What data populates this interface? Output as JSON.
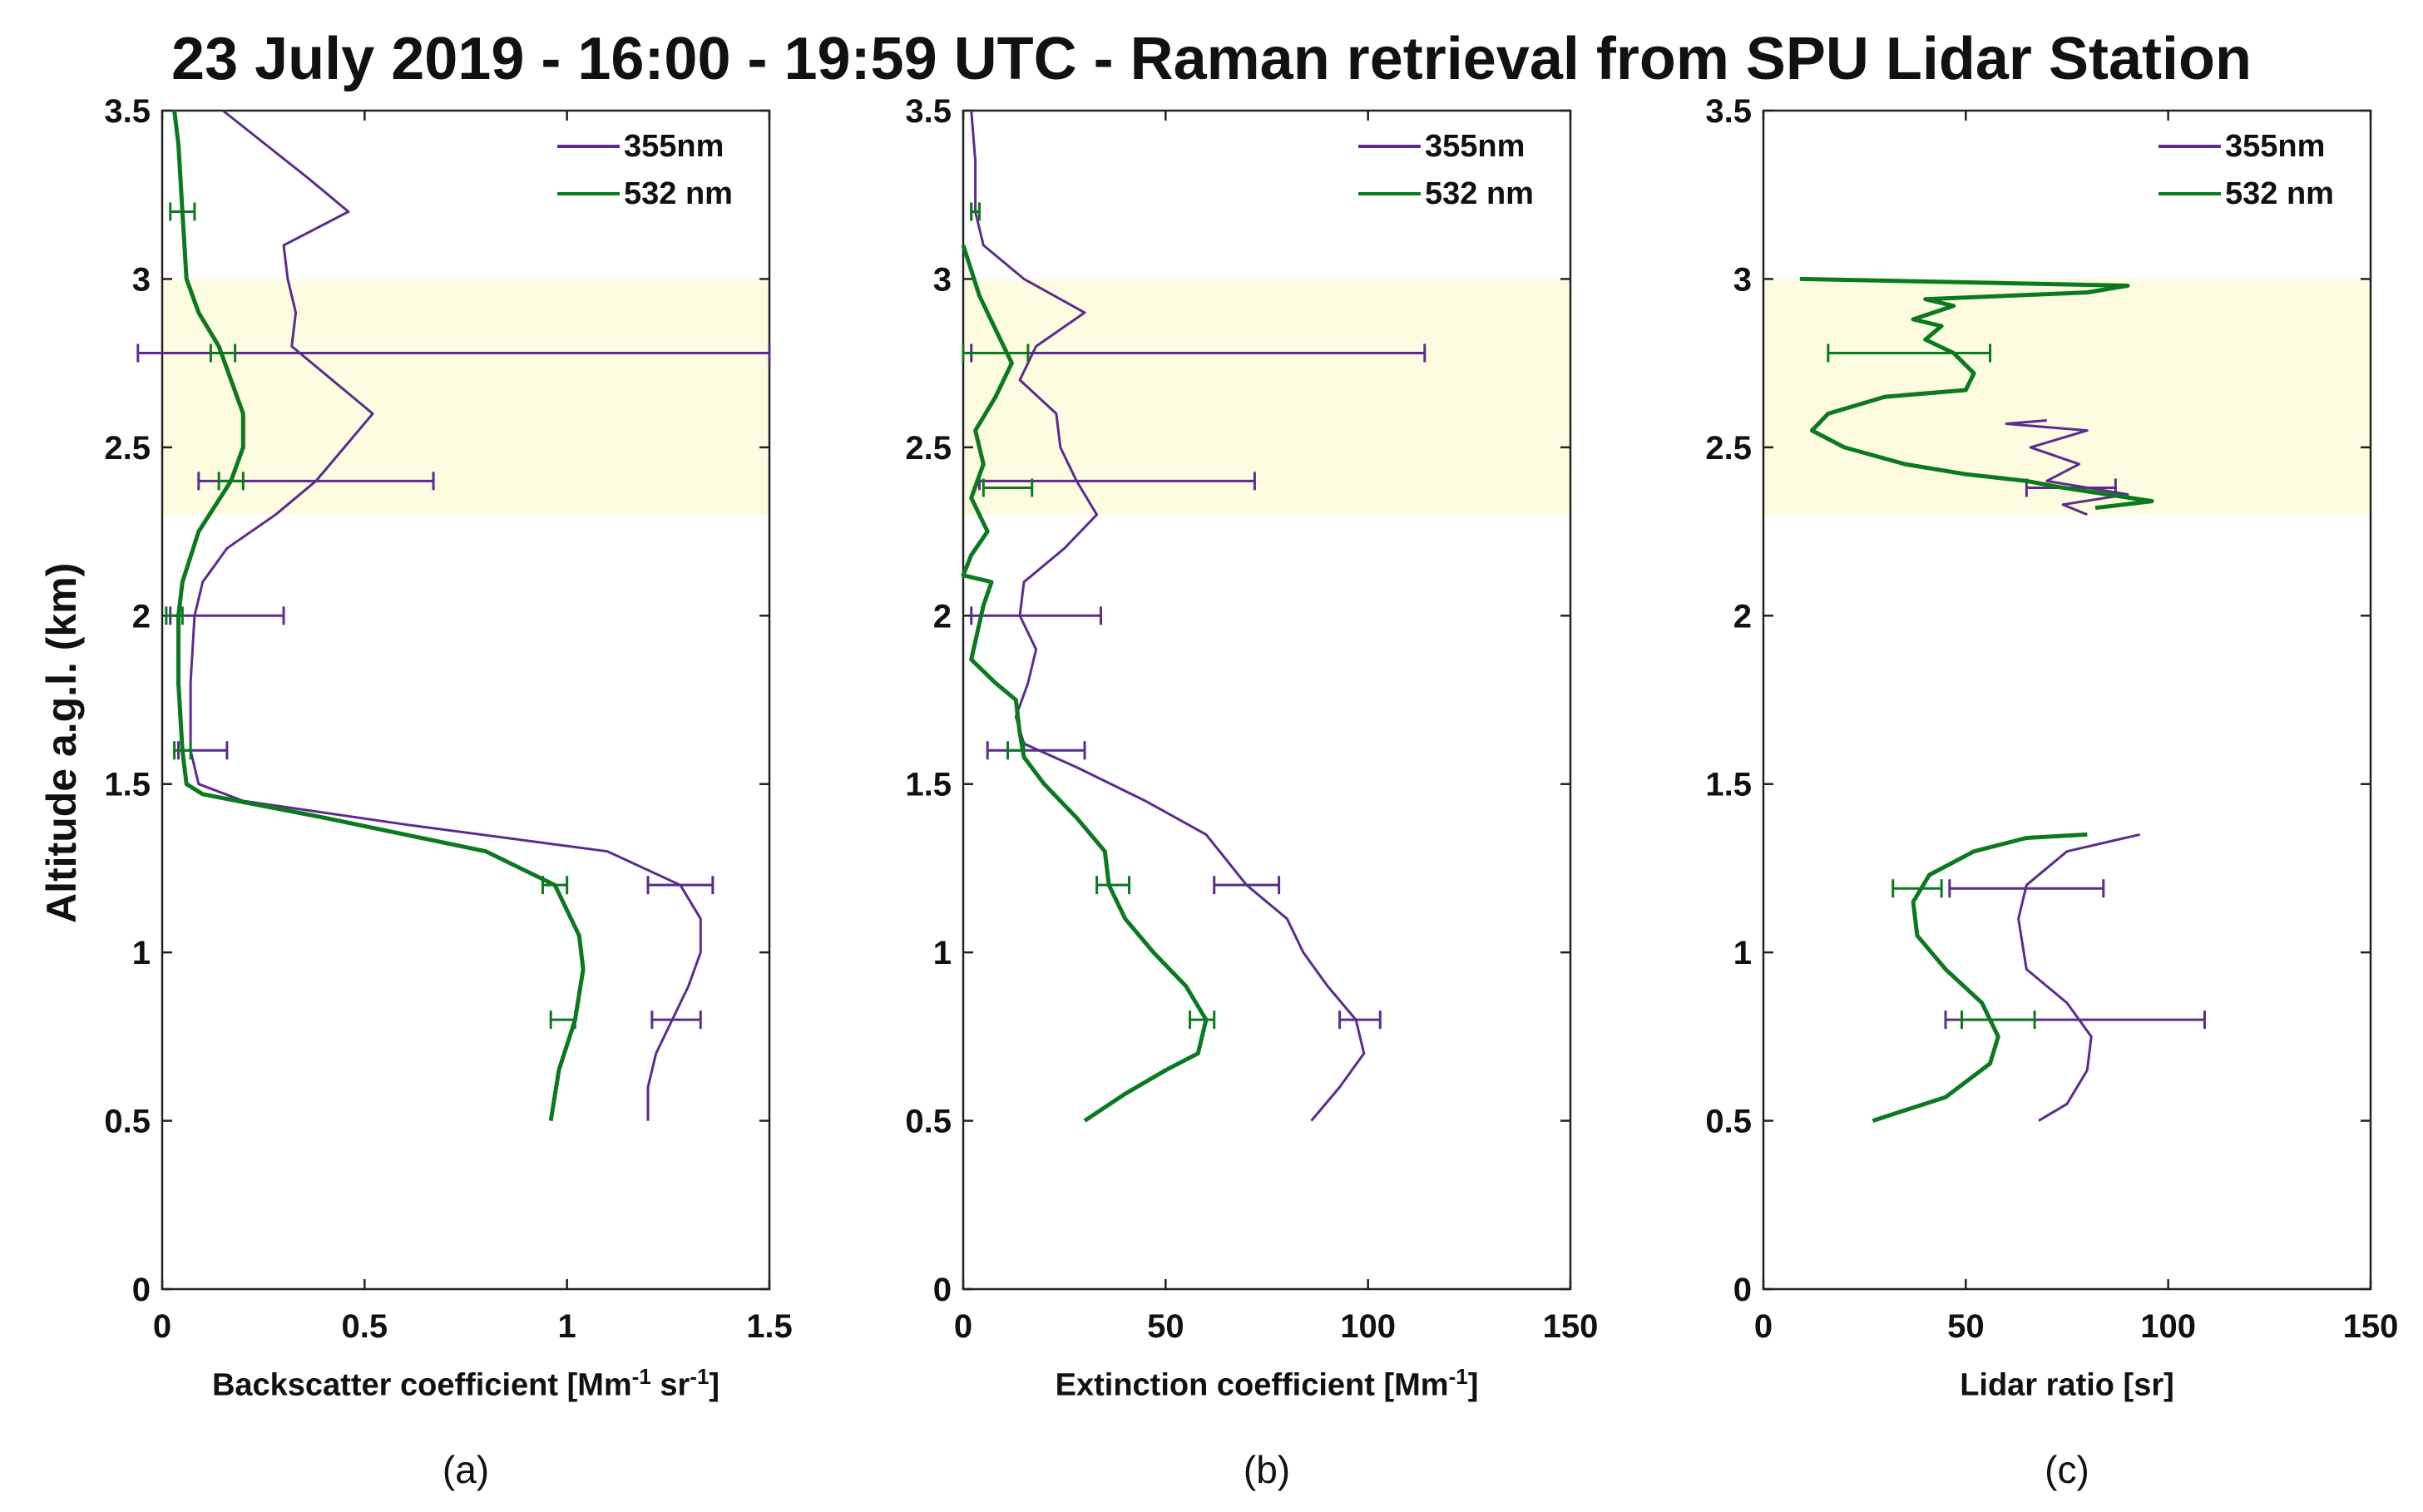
{
  "figure": {
    "title": "23 July 2019 - 16:00 - 19:59 UTC - Raman retrieval from SPU Lidar Station",
    "ylabel": "Altitude a.g.l. (km)",
    "colors": {
      "nm355": "#5b2c8e",
      "nm532": "#0b7a1f",
      "layer": "#fdfbe0",
      "axis": "#222222"
    }
  },
  "chart_data": [
    {
      "type": "line",
      "panel_label": "(a)",
      "xlabel_main": "Backscatter coefficient [Mm",
      "xlabel_sup1": "-1",
      "xlabel_mid": " sr",
      "xlabel_sup2": "-1",
      "xlabel_end": "]",
      "xlim": [
        0,
        1.5
      ],
      "ylim": [
        0,
        3.5
      ],
      "xticks": [
        0,
        0.5,
        1,
        1.5
      ],
      "xtick_labels": [
        "0",
        "0.5",
        "1",
        "1.5"
      ],
      "yticks": [
        0,
        0.5,
        1,
        1.5,
        2,
        2.5,
        3,
        3.5
      ],
      "ytick_labels": [
        "0",
        "0.5",
        "1",
        "1.5",
        "2",
        "2.5",
        "3",
        "3.5"
      ],
      "shaded_layer": [
        2.3,
        3.0
      ],
      "legend": [
        "355nm",
        "532 nm"
      ],
      "series": [
        {
          "name": "355nm",
          "points": [
            [
              1.2,
              0.5
            ],
            [
              1.2,
              0.6
            ],
            [
              1.22,
              0.7
            ],
            [
              1.26,
              0.8
            ],
            [
              1.3,
              0.9
            ],
            [
              1.33,
              1.0
            ],
            [
              1.33,
              1.1
            ],
            [
              1.28,
              1.2
            ],
            [
              1.1,
              1.3
            ],
            [
              0.6,
              1.38
            ],
            [
              0.2,
              1.45
            ],
            [
              0.09,
              1.5
            ],
            [
              0.07,
              1.6
            ],
            [
              0.07,
              1.8
            ],
            [
              0.08,
              2.0
            ],
            [
              0.1,
              2.1
            ],
            [
              0.16,
              2.2
            ],
            [
              0.28,
              2.3
            ],
            [
              0.38,
              2.4
            ],
            [
              0.45,
              2.5
            ],
            [
              0.52,
              2.6
            ],
            [
              0.42,
              2.7
            ],
            [
              0.32,
              2.8
            ],
            [
              0.33,
              2.9
            ],
            [
              0.31,
              3.0
            ],
            [
              0.3,
              3.1
            ],
            [
              0.46,
              3.2
            ],
            [
              0.36,
              3.3
            ],
            [
              0.15,
              3.5
            ]
          ],
          "errorbars": [
            [
              1.28,
              1.2,
              0.08
            ],
            [
              1.27,
              0.8,
              0.06
            ],
            [
              0.1,
              1.6,
              0.06
            ],
            [
              0.16,
              2.0,
              0.14
            ],
            [
              0.38,
              2.4,
              0.29
            ],
            [
              0.72,
              2.78,
              0.78
            ]
          ]
        },
        {
          "name": "532 nm",
          "points": [
            [
              0.96,
              0.5
            ],
            [
              0.98,
              0.65
            ],
            [
              1.02,
              0.8
            ],
            [
              1.04,
              0.95
            ],
            [
              1.03,
              1.05
            ],
            [
              0.97,
              1.2
            ],
            [
              0.8,
              1.3
            ],
            [
              0.4,
              1.4
            ],
            [
              0.1,
              1.47
            ],
            [
              0.06,
              1.5
            ],
            [
              0.05,
              1.6
            ],
            [
              0.04,
              1.8
            ],
            [
              0.04,
              2.0
            ],
            [
              0.05,
              2.1
            ],
            [
              0.09,
              2.25
            ],
            [
              0.17,
              2.4
            ],
            [
              0.2,
              2.5
            ],
            [
              0.2,
              2.6
            ],
            [
              0.17,
              2.7
            ],
            [
              0.14,
              2.8
            ],
            [
              0.09,
              2.9
            ],
            [
              0.06,
              3.0
            ],
            [
              0.05,
              3.2
            ],
            [
              0.04,
              3.4
            ],
            [
              0.03,
              3.5
            ]
          ],
          "errorbars": [
            [
              0.97,
              1.2,
              0.03
            ],
            [
              0.99,
              0.8,
              0.03
            ],
            [
              0.05,
              1.6,
              0.02
            ],
            [
              0.03,
              2.0,
              0.02
            ],
            [
              0.17,
              2.4,
              0.03
            ],
            [
              0.15,
              2.78,
              0.03
            ],
            [
              0.05,
              3.2,
              0.03
            ]
          ]
        }
      ]
    },
    {
      "type": "line",
      "panel_label": "(b)",
      "xlabel_main": "Extinction coefficient [Mm",
      "xlabel_sup1": "-1",
      "xlabel_mid": "",
      "xlabel_sup2": "",
      "xlabel_end": "]",
      "xlim": [
        0,
        150
      ],
      "ylim": [
        0,
        3.5
      ],
      "xticks": [
        0,
        50,
        100,
        150
      ],
      "xtick_labels": [
        "0",
        "50",
        "100",
        "150"
      ],
      "yticks": [
        0,
        0.5,
        1,
        1.5,
        2,
        2.5,
        3,
        3.5
      ],
      "ytick_labels": [
        "0",
        "0.5",
        "1",
        "1.5",
        "2",
        "2.5",
        "3",
        "3.5"
      ],
      "shaded_layer": [
        2.3,
        3.0
      ],
      "legend": [
        "355nm",
        "532 nm"
      ],
      "series": [
        {
          "name": "355nm",
          "points": [
            [
              86,
              0.5
            ],
            [
              93,
              0.6
            ],
            [
              99,
              0.7
            ],
            [
              97,
              0.8
            ],
            [
              90,
              0.9
            ],
            [
              84,
              1.0
            ],
            [
              80,
              1.1
            ],
            [
              70,
              1.2
            ],
            [
              60,
              1.35
            ],
            [
              45,
              1.45
            ],
            [
              28,
              1.55
            ],
            [
              15,
              1.62
            ],
            [
              13,
              1.7
            ],
            [
              16,
              1.8
            ],
            [
              18,
              1.9
            ],
            [
              14,
              2.0
            ],
            [
              15,
              2.1
            ],
            [
              25,
              2.2
            ],
            [
              33,
              2.3
            ],
            [
              28,
              2.4
            ],
            [
              24,
              2.5
            ],
            [
              23,
              2.6
            ],
            [
              14,
              2.7
            ],
            [
              18,
              2.8
            ],
            [
              30,
              2.9
            ],
            [
              15,
              3.0
            ],
            [
              5,
              3.1
            ],
            [
              3,
              3.2
            ],
            [
              3,
              3.35
            ],
            [
              2,
              3.5
            ]
          ],
          "errorbars": [
            [
              18,
              1.6,
              12
            ],
            [
              70,
              1.2,
              8
            ],
            [
              98,
              0.8,
              5
            ],
            [
              18,
              2.0,
              16
            ],
            [
              38,
              2.4,
              34
            ],
            [
              58,
              2.78,
              56
            ],
            [
              3,
              3.2,
              1
            ]
          ]
        },
        {
          "name": "532 nm",
          "points": [
            [
              30,
              0.5
            ],
            [
              40,
              0.58
            ],
            [
              50,
              0.65
            ],
            [
              58,
              0.7
            ],
            [
              60,
              0.8
            ],
            [
              55,
              0.9
            ],
            [
              47,
              1.0
            ],
            [
              40,
              1.1
            ],
            [
              36,
              1.2
            ],
            [
              35,
              1.3
            ],
            [
              28,
              1.4
            ],
            [
              20,
              1.5
            ],
            [
              15,
              1.58
            ],
            [
              14,
              1.65
            ],
            [
              13,
              1.75
            ],
            [
              8,
              1.8
            ],
            [
              2,
              1.87
            ],
            [
              5,
              2.03
            ],
            [
              7,
              2.1
            ],
            [
              0,
              2.12
            ],
            [
              2,
              2.18
            ],
            [
              6,
              2.25
            ],
            [
              2,
              2.35
            ],
            [
              5,
              2.45
            ],
            [
              3,
              2.55
            ],
            [
              8,
              2.65
            ],
            [
              12,
              2.75
            ],
            [
              8,
              2.85
            ],
            [
              4,
              2.95
            ],
            [
              0,
              3.1
            ]
          ],
          "errorbars": [
            [
              13,
              1.6,
              2
            ],
            [
              37,
              1.2,
              4
            ],
            [
              59,
              0.8,
              3
            ],
            [
              11,
              2.38,
              6
            ],
            [
              8,
              2.78,
              8
            ],
            [
              3,
              3.2,
              1
            ]
          ]
        }
      ]
    },
    {
      "type": "line",
      "panel_label": "(c)",
      "xlabel_main": "Lidar ratio [sr]",
      "xlabel_sup1": "",
      "xlabel_mid": "",
      "xlabel_sup2": "",
      "xlabel_end": "",
      "xlim": [
        0,
        150
      ],
      "ylim": [
        0,
        3.5
      ],
      "xticks": [
        0,
        50,
        100,
        150
      ],
      "xtick_labels": [
        "0",
        "50",
        "100",
        "150"
      ],
      "yticks": [
        0,
        0.5,
        1,
        1.5,
        2,
        2.5,
        3,
        3.5
      ],
      "ytick_labels": [
        "0",
        "0.5",
        "1",
        "1.5",
        "2",
        "2.5",
        "3",
        "3.5"
      ],
      "shaded_layer": [
        2.3,
        3.0
      ],
      "legend": [
        "355nm",
        "532 nm"
      ],
      "series": [
        {
          "name": "355nm",
          "points": [
            [
              68,
              0.5
            ],
            [
              75,
              0.55
            ],
            [
              80,
              0.65
            ],
            [
              81,
              0.75
            ],
            [
              75,
              0.85
            ],
            [
              65,
              0.95
            ],
            [
              63,
              1.1
            ],
            [
              65,
              1.2
            ],
            [
              75,
              1.3
            ],
            [
              93,
              1.35
            ]
          ],
          "errorbars": [
            [
              65,
              1.19,
              19
            ],
            [
              77,
              0.8,
              32
            ]
          ]
        },
        {
          "name": "355nm",
          "points": [
            [
              80,
              2.3
            ],
            [
              74,
              2.33
            ],
            [
              90,
              2.36
            ],
            [
              70,
              2.4
            ],
            [
              78,
              2.45
            ],
            [
              66,
              2.5
            ],
            [
              80,
              2.55
            ],
            [
              60,
              2.57
            ],
            [
              70,
              2.58
            ]
          ],
          "errorbars": [
            [
              76,
              2.38,
              11
            ]
          ]
        },
        {
          "name": "532 nm",
          "points": [
            [
              27,
              0.5
            ],
            [
              45,
              0.57
            ],
            [
              56,
              0.67
            ],
            [
              58,
              0.75
            ],
            [
              54,
              0.85
            ],
            [
              45,
              0.95
            ],
            [
              38,
              1.05
            ],
            [
              37,
              1.15
            ],
            [
              41,
              1.23
            ],
            [
              52,
              1.3
            ],
            [
              65,
              1.34
            ],
            [
              80,
              1.35
            ]
          ],
          "errorbars": [
            [
              38,
              1.19,
              6
            ],
            [
              58,
              0.8,
              9
            ]
          ]
        },
        {
          "name": "532 nm",
          "points": [
            [
              82,
              2.32
            ],
            [
              96,
              2.34
            ],
            [
              74,
              2.38
            ],
            [
              65,
              2.4
            ],
            [
              50,
              2.42
            ],
            [
              35,
              2.45
            ],
            [
              20,
              2.5
            ],
            [
              12,
              2.55
            ],
            [
              16,
              2.6
            ],
            [
              30,
              2.65
            ],
            [
              50,
              2.67
            ],
            [
              52,
              2.72
            ],
            [
              47,
              2.78
            ],
            [
              40,
              2.82
            ],
            [
              44,
              2.86
            ],
            [
              37,
              2.88
            ],
            [
              47,
              2.92
            ],
            [
              40,
              2.94
            ],
            [
              80,
              2.96
            ],
            [
              90,
              2.98
            ],
            [
              9,
              3.0
            ]
          ],
          "errorbars": [
            [
              36,
              2.78,
              20
            ]
          ]
        }
      ]
    }
  ]
}
